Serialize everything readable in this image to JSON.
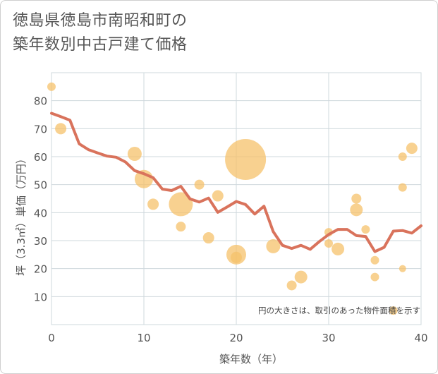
{
  "title_line1": "徳島県徳島市南昭和町の",
  "title_line2": "築年数別中古戸建て価格",
  "note": "円の大きさは、取引のあった物件面積を示す",
  "colors": {
    "line": "#d9735c",
    "bubble": "#f5c26b",
    "grid": "#cfd8dd",
    "plot_bg": "#ffffff"
  },
  "chart_data": {
    "type": "scatter",
    "xlabel": "築年数（年）",
    "ylabel": "坪（3.3㎡）単価（万円）",
    "xlim": [
      0,
      40
    ],
    "ylim": [
      0,
      90
    ],
    "xticks": [
      0,
      10,
      20,
      30,
      40
    ],
    "yticks": [
      10,
      20,
      30,
      40,
      50,
      60,
      70,
      80
    ],
    "grid": true,
    "series": [
      {
        "kind": "line",
        "x": [
          0,
          1,
          2,
          3,
          4,
          5,
          6,
          7,
          8,
          9,
          10,
          11,
          12,
          13,
          14,
          15,
          16,
          17,
          18,
          19,
          20,
          21,
          22,
          23,
          24,
          25,
          26,
          27,
          28,
          29,
          30,
          31,
          32,
          33,
          34,
          35,
          36,
          37,
          38,
          39,
          40
        ],
        "y": [
          75.5,
          74.3,
          73.0,
          64.6,
          62.5,
          61.3,
          60.2,
          59.8,
          58.1,
          55.0,
          53.9,
          52.5,
          48.4,
          47.9,
          49.4,
          44.9,
          43.8,
          45.2,
          40.1,
          42.0,
          44.0,
          42.9,
          39.5,
          42.3,
          33.2,
          28.3,
          27.2,
          28.3,
          26.9,
          29.7,
          32.2,
          34.0,
          34.0,
          31.8,
          31.5,
          26.1,
          27.6,
          33.4,
          33.6,
          32.7,
          35.3
        ]
      },
      {
        "kind": "bubble",
        "points": [
          {
            "x": 0,
            "y": 85,
            "r": 6
          },
          {
            "x": 1,
            "y": 70,
            "r": 8
          },
          {
            "x": 9,
            "y": 61,
            "r": 10
          },
          {
            "x": 10,
            "y": 52,
            "r": 13
          },
          {
            "x": 11,
            "y": 43,
            "r": 8
          },
          {
            "x": 14,
            "y": 43,
            "r": 17
          },
          {
            "x": 14,
            "y": 35,
            "r": 7
          },
          {
            "x": 16,
            "y": 50,
            "r": 7
          },
          {
            "x": 17,
            "y": 31,
            "r": 8
          },
          {
            "x": 18,
            "y": 46,
            "r": 8
          },
          {
            "x": 20,
            "y": 25,
            "r": 14
          },
          {
            "x": 20,
            "y": 24,
            "r": 8
          },
          {
            "x": 21,
            "y": 59,
            "r": 29
          },
          {
            "x": 24,
            "y": 28,
            "r": 10
          },
          {
            "x": 26,
            "y": 14,
            "r": 7
          },
          {
            "x": 27,
            "y": 17,
            "r": 9
          },
          {
            "x": 30,
            "y": 33,
            "r": 6
          },
          {
            "x": 30,
            "y": 29,
            "r": 6
          },
          {
            "x": 31,
            "y": 27,
            "r": 9
          },
          {
            "x": 33,
            "y": 45,
            "r": 7
          },
          {
            "x": 33,
            "y": 41,
            "r": 9
          },
          {
            "x": 34,
            "y": 34,
            "r": 6
          },
          {
            "x": 35,
            "y": 23,
            "r": 6
          },
          {
            "x": 35,
            "y": 17,
            "r": 6
          },
          {
            "x": 37,
            "y": 5,
            "r": 6
          },
          {
            "x": 38,
            "y": 60,
            "r": 6
          },
          {
            "x": 38,
            "y": 49,
            "r": 6
          },
          {
            "x": 38,
            "y": 20,
            "r": 5
          },
          {
            "x": 39,
            "y": 63,
            "r": 8
          }
        ]
      }
    ]
  }
}
